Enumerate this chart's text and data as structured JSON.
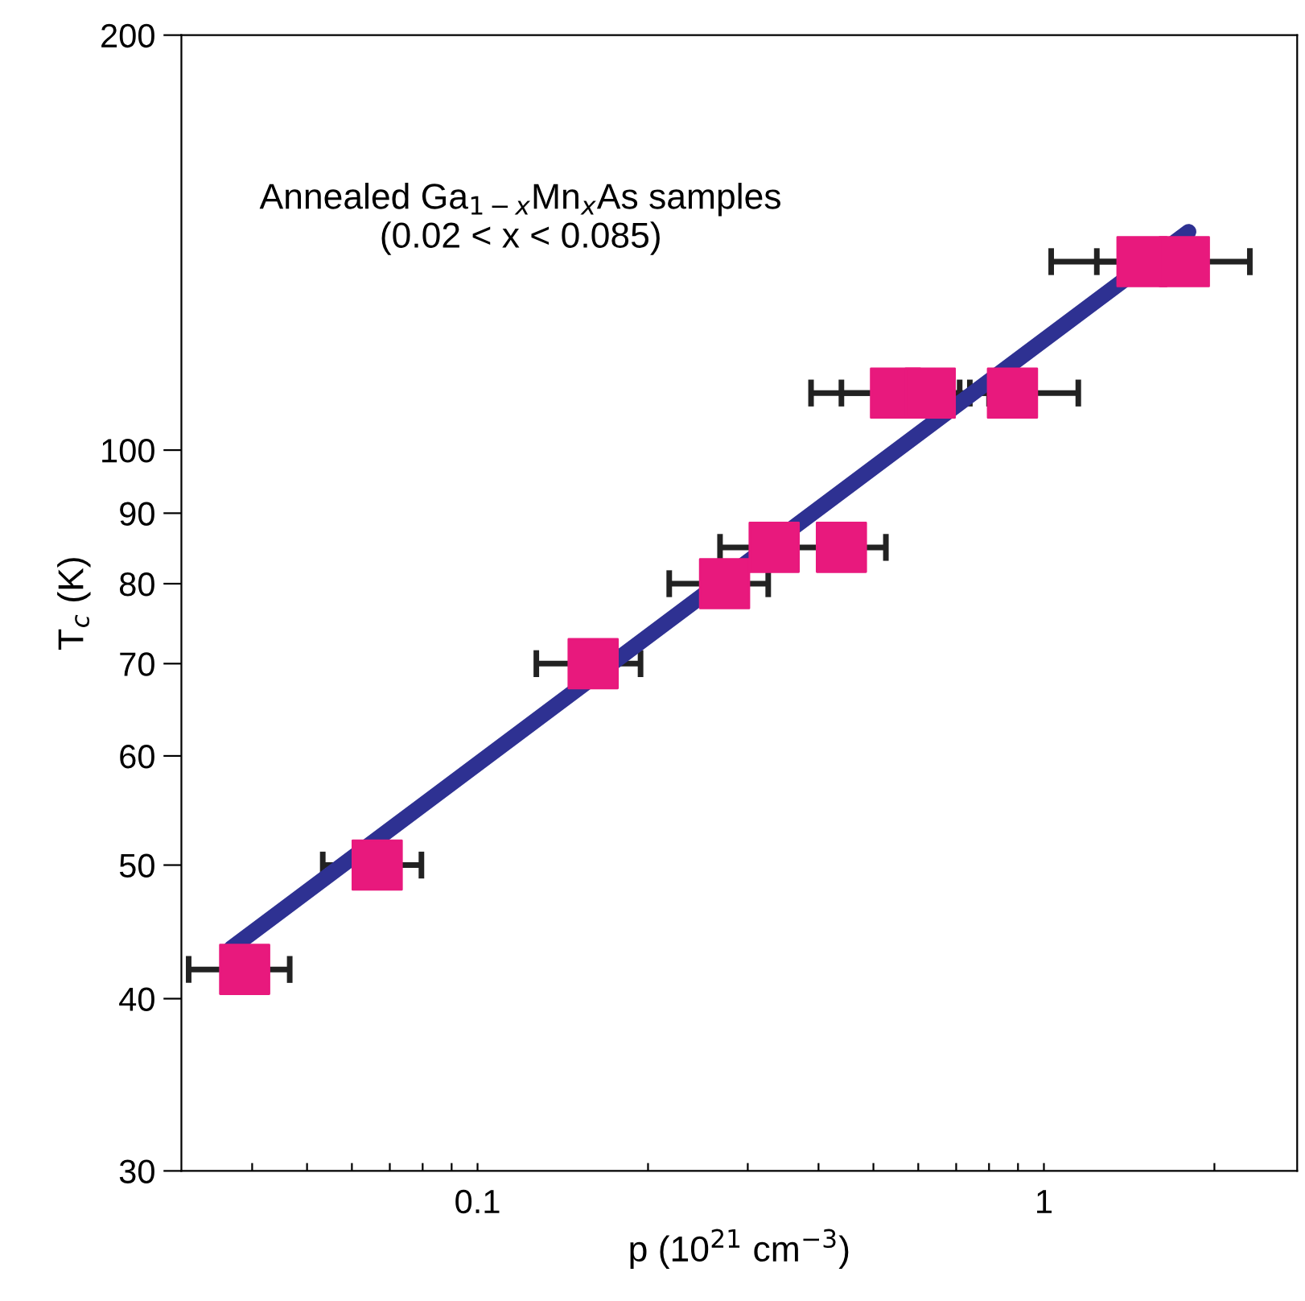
{
  "chart_data": {
    "type": "scatter",
    "xlabel": "p (10$^{21}$ cm$^{−3}$)",
    "ylabel": "T$_{c}$ (K)",
    "annotations": [
      "Annealed Ga$_{1−x}$Mn$_{x}$As samples\n(0.02 < x < 0.085)"
    ],
    "log": "xy",
    "xlim": [
      0.03,
      2.8
    ],
    "ylim": [
      30,
      200
    ],
    "xticks": [
      {
        "value": 0.04,
        "label": null
      },
      {
        "value": 0.05,
        "label": null
      },
      {
        "value": 0.06,
        "label": null
      },
      {
        "value": 0.07,
        "label": null
      },
      {
        "value": 0.08,
        "label": null
      },
      {
        "value": 0.09,
        "label": null
      },
      0.1,
      {
        "value": 0.2,
        "label": null
      },
      {
        "value": 0.3,
        "label": null
      },
      {
        "value": 0.4,
        "label": null
      },
      {
        "value": 0.5,
        "label": null
      },
      {
        "value": 0.6,
        "label": null
      },
      {
        "value": 0.7,
        "label": null
      },
      {
        "value": 0.8,
        "label": null
      },
      {
        "value": 0.9,
        "label": null
      },
      1,
      {
        "value": 2,
        "label": null
      }
    ],
    "yticks": [
      30,
      40,
      50,
      60,
      70,
      80,
      90,
      100,
      200
    ],
    "grid": false,
    "legend": false,
    "series": [
      {
        "type": "line",
        "color": "#2e3192",
        "marker": "none",
        "line_style": "solid",
        "x": [
          0.0367,
          1.8
        ],
        "values": [
          43.5,
          144
        ]
      },
      {
        "type": "scatter",
        "color": "#e8197d",
        "marker": "square",
        "x": [
          0.0388,
          0.0665,
          0.16,
          0.273,
          0.334,
          0.439,
          0.547,
          0.63,
          0.88,
          1.49,
          1.77
        ],
        "values": [
          42,
          50,
          70,
          80,
          85,
          85,
          110,
          110,
          110,
          137,
          137
        ],
        "xerrors": [
          [
            0.0309,
            0.0466
          ],
          [
            0.0533,
            0.0796
          ],
          [
            0.127,
            0.194
          ],
          [
            0.218,
            0.326
          ],
          [
            0.268,
            0.401
          ],
          [
            0.439,
            0.526
          ],
          [
            0.388,
            0.71
          ],
          [
            0.439,
            0.8
          ],
          [
            0.74,
            1.15
          ],
          [
            1.03,
            1.49
          ],
          [
            1.24,
            2.31
          ]
        ]
      }
    ]
  }
}
